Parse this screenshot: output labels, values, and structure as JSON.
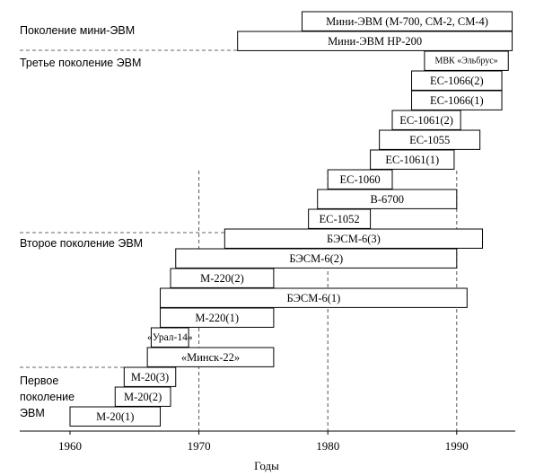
{
  "chart_data": {
    "type": "bar",
    "orientation": "horizontal",
    "xlabel": "Годы",
    "xlim": [
      1960,
      1994
    ],
    "xticks": [
      1960,
      1970,
      1980,
      1990
    ],
    "grid_x": [
      1970,
      1980,
      1990
    ],
    "generation_labels": [
      {
        "text": "Поколение мини-ЭВМ",
        "lines": [
          "Поколение мини-ЭВМ"
        ]
      },
      {
        "text": "Третье поколение ЭВМ",
        "lines": [
          "Третье поколение ЭВМ"
        ]
      },
      {
        "text": "Второе поколение ЭВМ",
        "lines": [
          "Второе поколение ЭВМ"
        ]
      },
      {
        "text": "Первое поколение ЭВМ",
        "lines": [
          "Первое",
          "поколение",
          "ЭВМ"
        ]
      }
    ],
    "separators": [
      {
        "x_end": 1974
      },
      {
        "x_end": 1980
      },
      {
        "x_end": 1978
      },
      {
        "x_end": 1968
      }
    ],
    "bars": [
      {
        "name": "Мини-ЭВМ (М-700, СМ-2, СМ-4)",
        "start": 1978,
        "end": 1994.3
      },
      {
        "name": "Мини-ЭВМ HP-200",
        "start": 1973,
        "end": 1994.3
      },
      {
        "name": "МВК «Эльбрус»",
        "start": 1987.5,
        "end": 1994
      },
      {
        "name": "ЕС-1066(2)",
        "start": 1986.5,
        "end": 1993.5
      },
      {
        "name": "ЕС-1066(1)",
        "start": 1986.5,
        "end": 1993.5
      },
      {
        "name": "ЕС-1061(2)",
        "start": 1985,
        "end": 1990.3
      },
      {
        "name": "ЕС-1055",
        "start": 1984,
        "end": 1991.8
      },
      {
        "name": "ЕС-1061(1)",
        "start": 1983.3,
        "end": 1989.8
      },
      {
        "name": "ЕС-1060",
        "start": 1980,
        "end": 1985
      },
      {
        "name": "В-6700",
        "start": 1979.2,
        "end": 1990
      },
      {
        "name": "ЕС-1052",
        "start": 1978.5,
        "end": 1983.3
      },
      {
        "name": "БЭСМ-6(3)",
        "start": 1972,
        "end": 1992
      },
      {
        "name": "БЭСМ-6(2)",
        "start": 1968.2,
        "end": 1990
      },
      {
        "name": "М-220(2)",
        "start": 1967.8,
        "end": 1975.8
      },
      {
        "name": "БЭСМ-6(1)",
        "start": 1967,
        "end": 1990.8
      },
      {
        "name": "М-220(1)",
        "start": 1967,
        "end": 1975.8
      },
      {
        "name": "«Урал-14»",
        "start": 1966.3,
        "end": 1969.2
      },
      {
        "name": "«Минск-22»",
        "start": 1966,
        "end": 1975.8
      },
      {
        "name": "М-20(3)",
        "start": 1964.2,
        "end": 1968.2
      },
      {
        "name": "М-20(2)",
        "start": 1963.5,
        "end": 1967.8
      },
      {
        "name": "М-20(1)",
        "start": 1960,
        "end": 1967
      }
    ]
  }
}
